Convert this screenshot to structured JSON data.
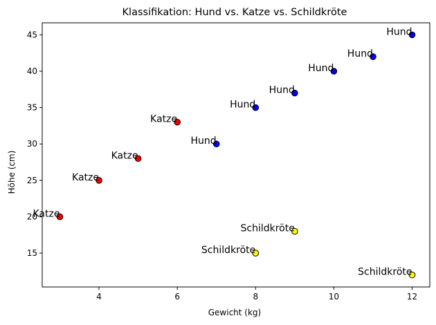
{
  "chart_data": {
    "type": "scatter",
    "title": "Klassifikation: Hund vs. Katze vs. Schildkröte",
    "xlabel": "Gewicht (kg)",
    "ylabel": "Höhe (cm)",
    "xlim": [
      2.55,
      12.45
    ],
    "ylim": [
      10.35,
      46.65
    ],
    "xticks": [
      4,
      6,
      8,
      10,
      12
    ],
    "yticks": [
      15,
      20,
      25,
      30,
      35,
      40,
      45
    ],
    "grid": false,
    "legend": "none",
    "points": [
      {
        "x": 3,
        "y": 20,
        "label": "Katze",
        "color": "#ff0000"
      },
      {
        "x": 4,
        "y": 25,
        "label": "Katze",
        "color": "#ff0000"
      },
      {
        "x": 5,
        "y": 28,
        "label": "Katze",
        "color": "#ff0000"
      },
      {
        "x": 6,
        "y": 33,
        "label": "Katze",
        "color": "#ff0000"
      },
      {
        "x": 7,
        "y": 30,
        "label": "Hund",
        "color": "#0000ff"
      },
      {
        "x": 8,
        "y": 35,
        "label": "Hund",
        "color": "#0000ff"
      },
      {
        "x": 9,
        "y": 37,
        "label": "Hund",
        "color": "#0000ff"
      },
      {
        "x": 10,
        "y": 40,
        "label": "Hund",
        "color": "#0000ff"
      },
      {
        "x": 11,
        "y": 42,
        "label": "Hund",
        "color": "#0000ff"
      },
      {
        "x": 12,
        "y": 45,
        "label": "Hund",
        "color": "#0000ff"
      },
      {
        "x": 8,
        "y": 15,
        "label": "Schildkröte",
        "color": "#ffff00"
      },
      {
        "x": 9,
        "y": 18,
        "label": "Schildkröte",
        "color": "#ffff00"
      },
      {
        "x": 12,
        "y": 12,
        "label": "Schildkröte",
        "color": "#ffff00"
      }
    ]
  }
}
